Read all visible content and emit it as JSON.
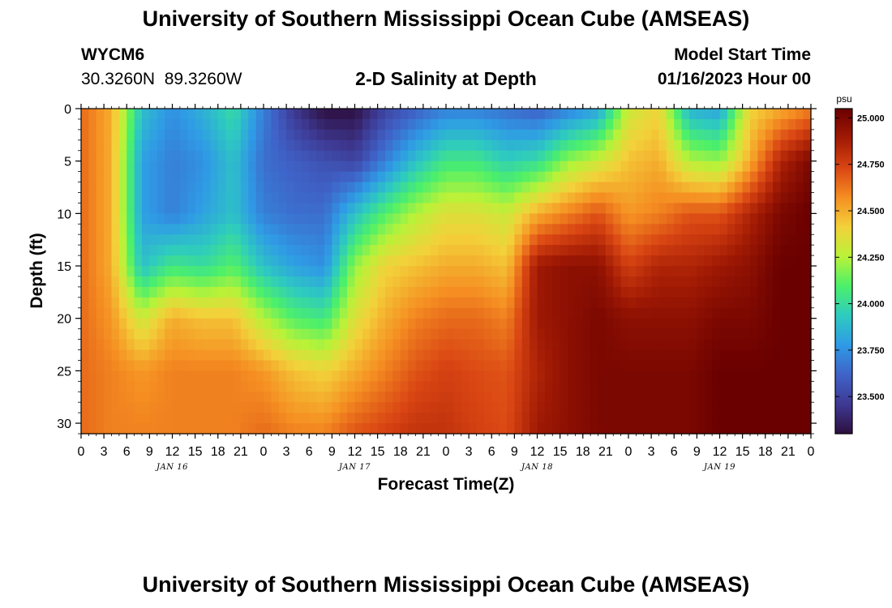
{
  "header": {
    "title": "University of Southern Mississippi Ocean Cube (AMSEAS)",
    "station_id": "WYCM6",
    "station_coords": "30.3260N  89.3260W",
    "subtitle": "2-D Salinity at Depth",
    "model_start_label": "Model Start Time",
    "model_start_value": "01/16/2023 Hour 00"
  },
  "footer": {
    "title": "University of Southern Mississippi Ocean Cube (AMSEAS)"
  },
  "colors": {
    "colormap": [
      "#2d0f3f",
      "#3e3993",
      "#3f63c8",
      "#2f9ae6",
      "#2ecbbf",
      "#4cf06a",
      "#b9f238",
      "#f3d13a",
      "#f58e22",
      "#d94513",
      "#a11a04",
      "#6a0000"
    ]
  },
  "chart_data": {
    "type": "heatmap",
    "title": "2-D Salinity at Depth",
    "xlabel": "Forecast Time(Z)",
    "ylabel": "Depth (ft)",
    "x_unit": "forecast hour",
    "xlim": [
      0,
      96
    ],
    "ylim": [
      0,
      31
    ],
    "x_tick_values": [
      0,
      3,
      6,
      9,
      12,
      15,
      18,
      21,
      24,
      27,
      30,
      33,
      36,
      39,
      42,
      45,
      48,
      51,
      54,
      57,
      60,
      63,
      66,
      69,
      72,
      75,
      78,
      81,
      84,
      87,
      90,
      93,
      96
    ],
    "x_tick_labels": [
      "0",
      "3",
      "6",
      "9",
      "12",
      "15",
      "18",
      "21",
      "0",
      "3",
      "6",
      "9",
      "12",
      "15",
      "18",
      "21",
      "0",
      "3",
      "6",
      "9",
      "12",
      "15",
      "18",
      "21",
      "0",
      "3",
      "6",
      "9",
      "12",
      "15",
      "18",
      "21",
      "0"
    ],
    "day_labels": [
      {
        "hour": 12,
        "label": "JAN 16"
      },
      {
        "hour": 36,
        "label": "JAN 17"
      },
      {
        "hour": 60,
        "label": "JAN 18"
      },
      {
        "hour": 84,
        "label": "JAN 19"
      }
    ],
    "y_ticks": [
      0,
      5,
      10,
      15,
      20,
      25,
      30
    ],
    "colorbar": {
      "unit": "psu",
      "min": 23.3,
      "max": 25.05,
      "ticks": [
        25.0,
        24.75,
        24.5,
        24.25,
        24.0,
        23.75,
        23.5
      ],
      "tick_labels": [
        "25.000",
        "24.750",
        "24.500",
        "24.250",
        "24.000",
        "23.750",
        "23.500"
      ]
    },
    "grid_hours": [
      0,
      4,
      8,
      12,
      16,
      20,
      24,
      28,
      32,
      36,
      40,
      44,
      48,
      52,
      56,
      60,
      64,
      68,
      72,
      76,
      80,
      84,
      88,
      92,
      96
    ],
    "grid_depths": [
      0,
      5,
      10,
      15,
      20,
      25,
      31
    ],
    "values": [
      [
        24.65,
        24.65,
        24.65,
        24.65,
        24.65,
        24.65,
        24.65
      ],
      [
        24.5,
        24.5,
        24.5,
        24.5,
        24.55,
        24.6,
        24.6
      ],
      [
        23.9,
        23.8,
        23.8,
        23.9,
        24.3,
        24.55,
        24.6
      ],
      [
        23.75,
        23.7,
        23.7,
        24.05,
        24.5,
        24.6,
        24.6
      ],
      [
        23.85,
        23.75,
        23.8,
        24.0,
        24.45,
        24.6,
        24.6
      ],
      [
        24.0,
        23.9,
        23.9,
        24.1,
        24.45,
        24.6,
        24.6
      ],
      [
        23.7,
        23.65,
        23.7,
        23.9,
        24.25,
        24.55,
        24.65
      ],
      [
        23.45,
        23.6,
        23.65,
        23.8,
        24.1,
        24.45,
        24.6
      ],
      [
        23.3,
        23.55,
        23.65,
        23.75,
        24.05,
        24.4,
        24.6
      ],
      [
        23.3,
        23.5,
        23.9,
        24.2,
        24.35,
        24.5,
        24.7
      ],
      [
        23.5,
        23.7,
        24.1,
        24.4,
        24.5,
        24.6,
        24.75
      ],
      [
        23.6,
        23.9,
        24.25,
        24.45,
        24.6,
        24.7,
        24.8
      ],
      [
        23.7,
        24.05,
        24.35,
        24.5,
        24.65,
        24.75,
        24.8
      ],
      [
        23.7,
        24.05,
        24.35,
        24.5,
        24.65,
        24.72,
        24.75
      ],
      [
        23.65,
        23.95,
        24.3,
        24.45,
        24.6,
        24.7,
        24.72
      ],
      [
        23.6,
        24.0,
        24.5,
        24.9,
        24.9,
        24.85,
        24.9
      ],
      [
        23.7,
        24.2,
        24.6,
        24.95,
        24.95,
        24.95,
        24.95
      ],
      [
        23.8,
        24.3,
        24.7,
        24.95,
        25.0,
        25.0,
        25.0
      ],
      [
        24.3,
        24.45,
        24.55,
        24.75,
        24.95,
        25.0,
        25.0
      ],
      [
        24.4,
        24.5,
        24.6,
        24.85,
        24.95,
        25.0,
        25.0
      ],
      [
        23.85,
        24.25,
        24.7,
        24.85,
        24.95,
        25.0,
        25.0
      ],
      [
        23.8,
        24.2,
        24.7,
        24.9,
        25.0,
        25.05,
        25.05
      ],
      [
        24.4,
        24.5,
        24.85,
        24.95,
        25.0,
        25.05,
        25.05
      ],
      [
        24.5,
        24.85,
        25.0,
        25.05,
        25.05,
        25.05,
        25.05
      ],
      [
        24.6,
        25.0,
        25.05,
        25.05,
        25.05,
        25.05,
        25.05
      ]
    ]
  }
}
